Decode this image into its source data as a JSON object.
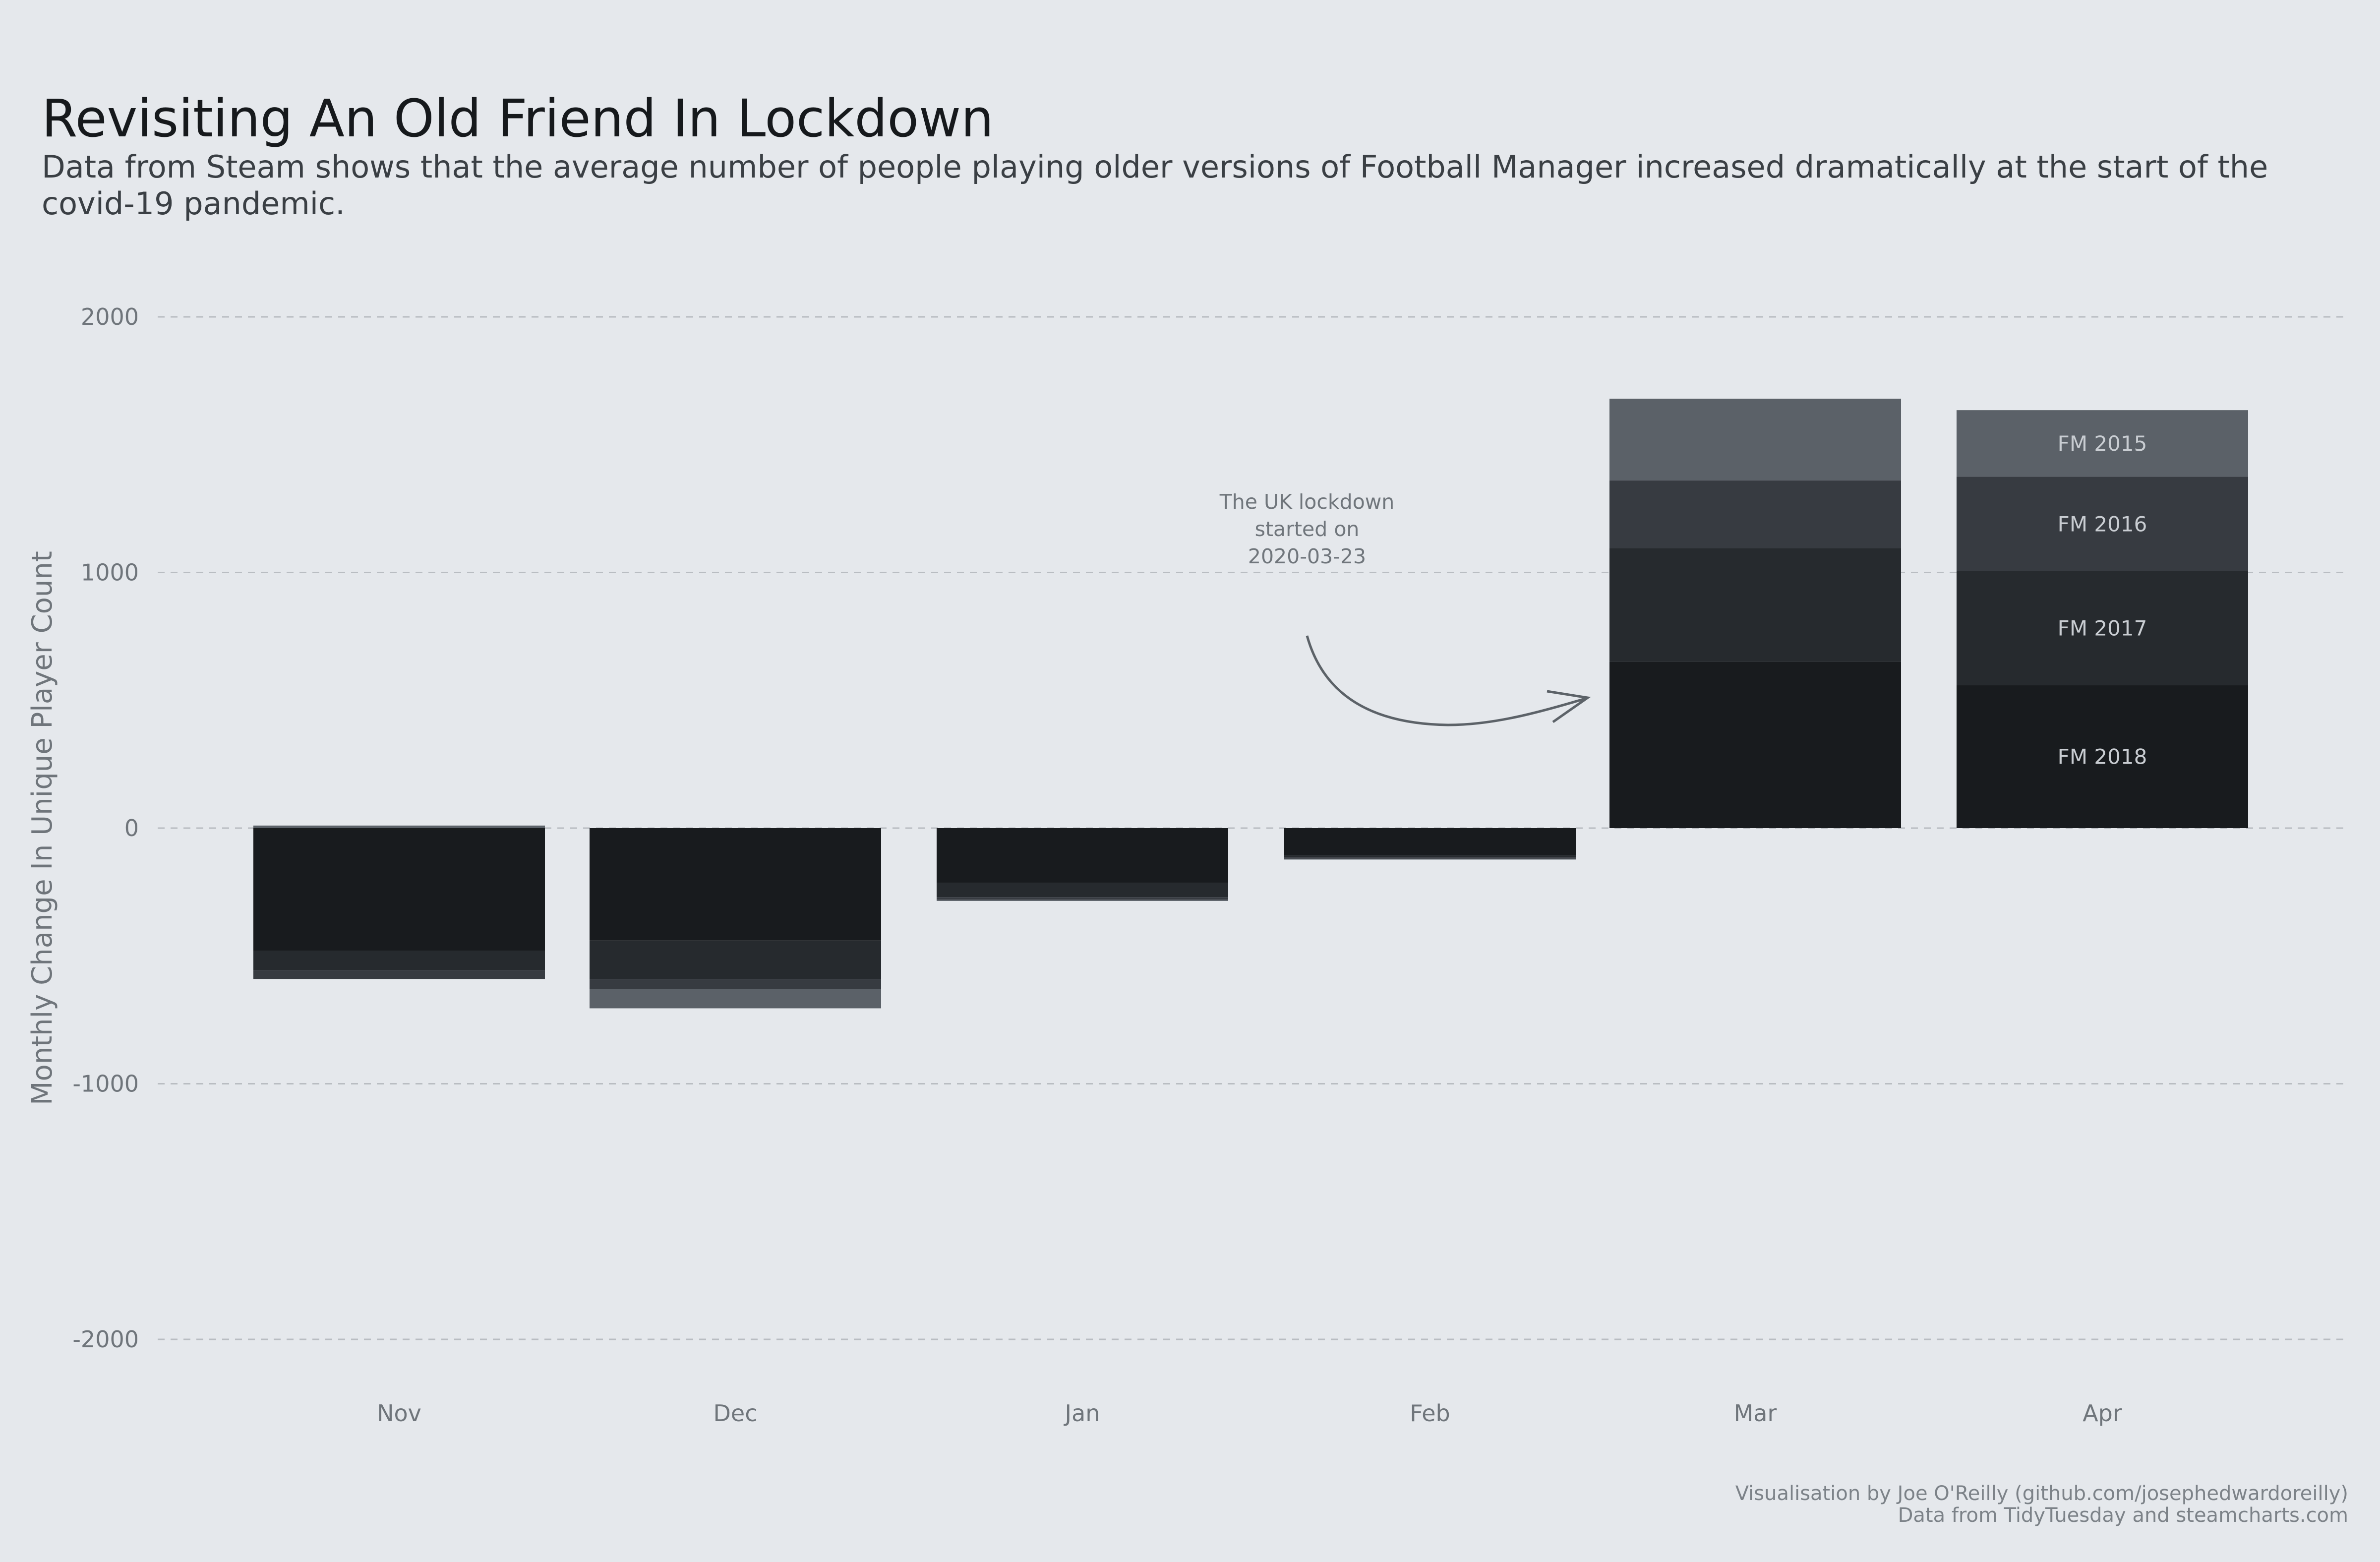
{
  "title": "Revisiting An Old Friend In Lockdown",
  "subtitle": "Data from Steam shows that the average number of people playing older versions of Football Manager increased dramatically at the start of the covid-19 pandemic.",
  "caption": {
    "line1": "Visualisation by Joe O'Reilly (github.com/josephedwardoreilly)",
    "line2": "Data from TidyTuesday and steamcharts.com"
  },
  "annotation": {
    "line1": "The UK lockdown",
    "line2": "started on",
    "line3": "2020-03-23"
  },
  "chart_data": {
    "type": "bar",
    "stacked": true,
    "ylabel": "Monthly Change In Unique Player Count",
    "xlabel": "",
    "ylim": [
      -2000,
      2000
    ],
    "yticks": [
      2000,
      1000,
      0,
      -1000,
      -2000
    ],
    "grid": "horizontal dashed",
    "categories": [
      "Nov",
      "Dec",
      "Jan",
      "Feb",
      "Mar",
      "Apr"
    ],
    "series": [
      {
        "name": "FM 2018",
        "color": "#181b1e",
        "values": [
          -480,
          -440,
          -215,
          -105,
          650,
          560
        ]
      },
      {
        "name": "FM 2017",
        "color": "#262a2e",
        "values": [
          -75,
          -150,
          -55,
          -10,
          445,
          445
        ]
      },
      {
        "name": "FM 2016",
        "color": "#373b41",
        "values": [
          -35,
          -40,
          -10,
          -5,
          265,
          370
        ]
      },
      {
        "name": "FM 2015",
        "color": "#5b6168",
        "values": [
          10,
          -75,
          -5,
          -3,
          320,
          260
        ]
      }
    ],
    "direct_labels_on": "Apr"
  }
}
